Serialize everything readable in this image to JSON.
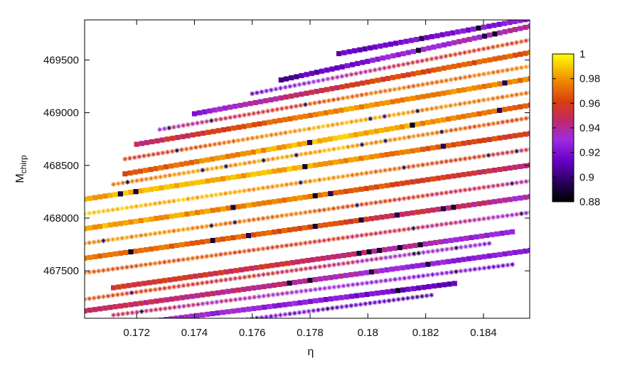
{
  "chart_data": {
    "type": "scatter",
    "xlabel": "η",
    "ylabel_main": "M",
    "ylabel_sub": "chirp",
    "xlim": [
      0.1702,
      0.1856
    ],
    "ylim": [
      467050,
      469880
    ],
    "xticks": [
      0.172,
      0.174,
      0.176,
      0.178,
      0.18,
      0.182,
      0.184
    ],
    "xtick_labels": [
      "0.172",
      "0.174",
      "0.176",
      "0.178",
      "0.18",
      "0.182",
      "0.184"
    ],
    "yticks": [
      467500,
      468000,
      468500,
      469000,
      469500
    ],
    "ytick_labels": [
      "467500",
      "468000",
      "468500",
      "469000",
      "469500"
    ],
    "colorbar": {
      "min": 0.88,
      "max": 1.0,
      "ticks": [
        0.88,
        0.9,
        0.92,
        0.94,
        0.96,
        0.98,
        1
      ],
      "tick_labels": [
        "0.88",
        "0.9",
        "0.92",
        "0.94",
        "0.96",
        "0.98",
        "1"
      ],
      "colormap": "gnuplot pm3d (black-purple-red-orange-yellow)"
    },
    "marker_types": [
      "filled-square",
      "asterisk"
    ],
    "series_description": "Points lie along parallel diagonal bands rising with eta; color = match value; bands alternate square and asterisk markers",
    "bands": [
      {
        "marker": "square",
        "x": [
          0.1702,
          0.1858
        ],
        "y": [
          467120,
          467700
        ],
        "c": [
          0.95,
          0.94,
          0.92
        ]
      },
      {
        "marker": "asterisk",
        "x": [
          0.1702,
          0.1842
        ],
        "y": [
          467230,
          467760
        ],
        "c": [
          0.965,
          0.95,
          0.925
        ]
      },
      {
        "marker": "square",
        "x": [
          0.1712,
          0.185
        ],
        "y": [
          467340,
          467870
        ],
        "c": [
          0.96,
          0.95,
          0.925
        ]
      },
      {
        "marker": "asterisk",
        "x": [
          0.1702,
          0.1858
        ],
        "y": [
          467480,
          468060
        ],
        "c": [
          0.97,
          0.96,
          0.93
        ]
      },
      {
        "marker": "square",
        "x": [
          0.1702,
          0.1858
        ],
        "y": [
          467620,
          468210
        ],
        "c": [
          0.975,
          0.965,
          0.935
        ]
      },
      {
        "marker": "asterisk",
        "x": [
          0.1702,
          0.1858
        ],
        "y": [
          467760,
          468360
        ],
        "c": [
          0.98,
          0.97,
          0.94
        ]
      },
      {
        "marker": "square",
        "x": [
          0.1702,
          0.1858
        ],
        "y": [
          467900,
          468510
        ],
        "c": [
          0.985,
          0.975,
          0.945
        ]
      },
      {
        "marker": "asterisk",
        "x": [
          0.1702,
          0.1858
        ],
        "y": [
          468040,
          468660
        ],
        "c": [
          0.99,
          0.98,
          0.95
        ]
      },
      {
        "marker": "square",
        "x": [
          0.1702,
          0.1858
        ],
        "y": [
          468180,
          468810
        ],
        "c": [
          0.985,
          0.985,
          0.955
        ]
      },
      {
        "marker": "asterisk",
        "x": [
          0.1712,
          0.1858
        ],
        "y": [
          468320,
          468960
        ],
        "c": [
          0.975,
          0.985,
          0.96
        ]
      },
      {
        "marker": "square",
        "x": [
          0.1716,
          0.1858
        ],
        "y": [
          468420,
          469080
        ],
        "c": [
          0.965,
          0.99,
          0.965
        ]
      },
      {
        "marker": "asterisk",
        "x": [
          0.1716,
          0.1858
        ],
        "y": [
          468560,
          469200
        ],
        "c": [
          0.955,
          0.985,
          0.97
        ]
      },
      {
        "marker": "square",
        "x": [
          0.172,
          0.1858
        ],
        "y": [
          468700,
          469330
        ],
        "c": [
          0.945,
          0.98,
          0.975
        ]
      },
      {
        "marker": "asterisk",
        "x": [
          0.1728,
          0.1858
        ],
        "y": [
          468840,
          469450
        ],
        "c": [
          0.935,
          0.97,
          0.975
        ]
      },
      {
        "marker": "square",
        "x": [
          0.174,
          0.1858
        ],
        "y": [
          468990,
          469580
        ],
        "c": [
          0.925,
          0.96,
          0.97
        ]
      },
      {
        "marker": "asterisk",
        "x": [
          0.176,
          0.1858
        ],
        "y": [
          469180,
          469700
        ],
        "c": [
          0.915,
          0.95,
          0.965
        ]
      },
      {
        "marker": "square",
        "x": [
          0.177,
          0.1858
        ],
        "y": [
          469310,
          469830
        ],
        "c": [
          0.905,
          0.93,
          0.94
        ]
      },
      {
        "marker": "square",
        "x": [
          0.179,
          0.1858
        ],
        "y": [
          469560,
          469900
        ],
        "c": [
          0.91,
          0.92,
          0.925
        ]
      },
      {
        "marker": "asterisk",
        "x": [
          0.1712,
          0.185
        ],
        "y": [
          467080,
          467560
        ],
        "c": [
          0.945,
          0.935,
          0.915
        ]
      },
      {
        "marker": "square",
        "x": [
          0.1716,
          0.183
        ],
        "y": [
          466990,
          467380
        ],
        "c": [
          0.935,
          0.925,
          0.91
        ]
      },
      {
        "marker": "asterisk",
        "x": [
          0.1742,
          0.1822
        ],
        "y": [
          466980,
          467270
        ],
        "c": [
          0.925,
          0.915,
          0.905
        ]
      }
    ]
  }
}
